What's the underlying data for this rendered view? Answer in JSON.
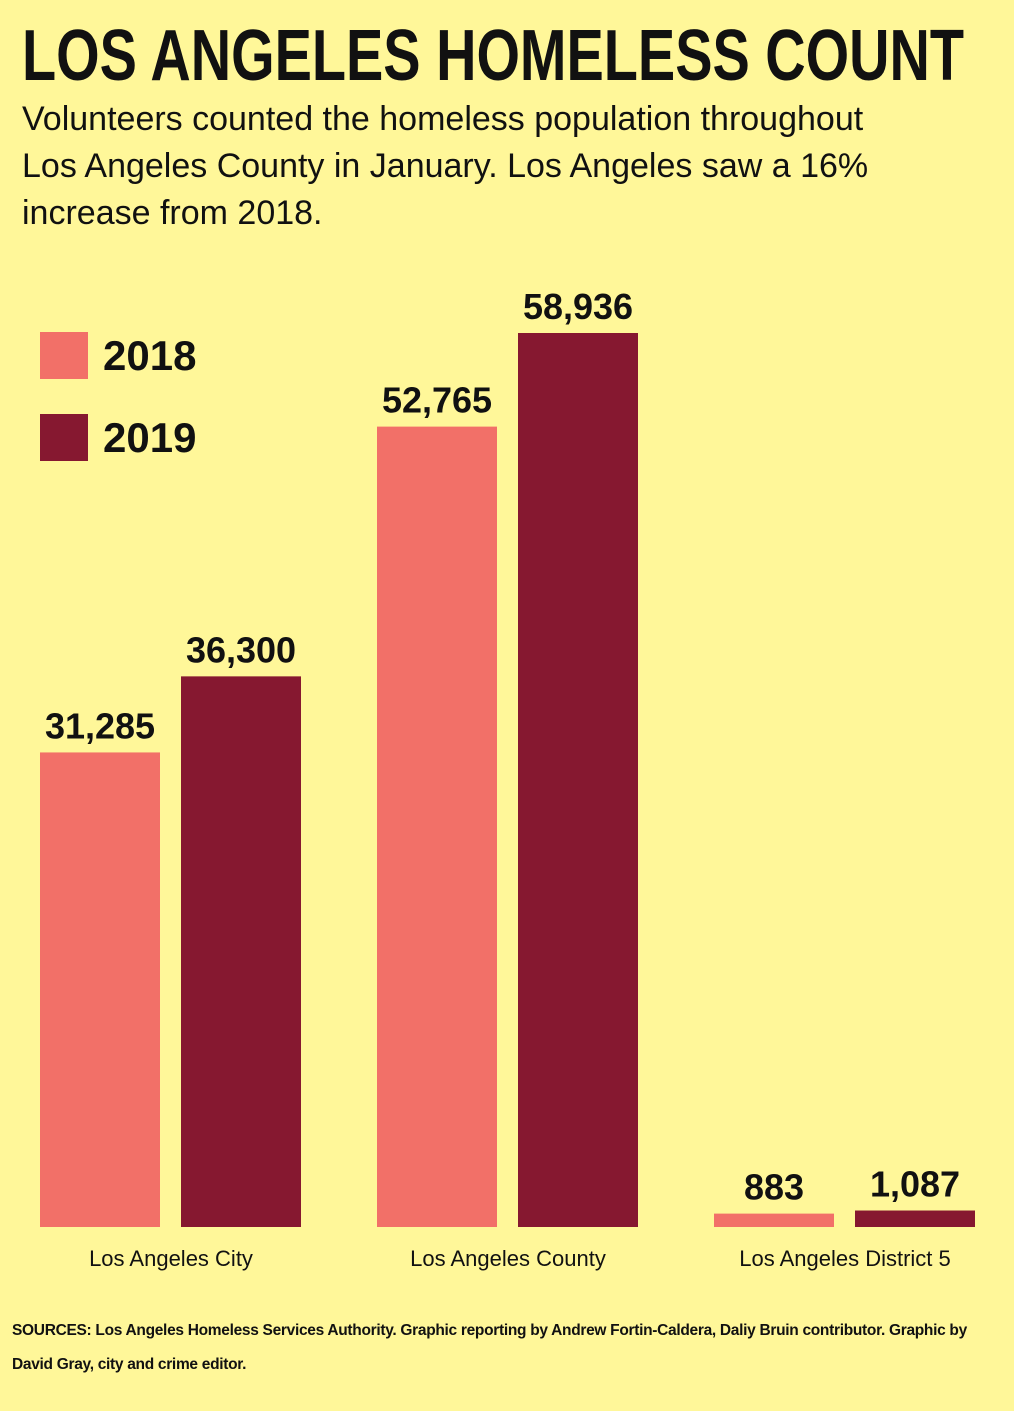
{
  "chart_data": {
    "type": "bar",
    "title": "LOS ANGELES HOMELESS COUNT",
    "subtitle": "Volunteers counted the homeless population throughout Los Angeles County in January.  Los Angeles saw a 16% increase from 2018.",
    "source": "SOURCES: Los Angeles Homeless Services Authority. Graphic reporting by Andrew Fortin-Caldera, Daliy Bruin contributor. Graphic by David Gray, city and crime editor.",
    "categories": [
      "Los Angeles City",
      "Los Angeles County",
      "Los Angeles District 5"
    ],
    "series": [
      {
        "name": "2018",
        "color": "#f27068",
        "values": [
          31285,
          52765,
          883
        ],
        "value_labels": [
          "31,285",
          "52,765",
          "883"
        ]
      },
      {
        "name": "2019",
        "color": "#861830",
        "values": [
          36300,
          58936,
          1087
        ],
        "value_labels": [
          "36,300",
          "58,936",
          "1,087"
        ]
      }
    ]
  }
}
